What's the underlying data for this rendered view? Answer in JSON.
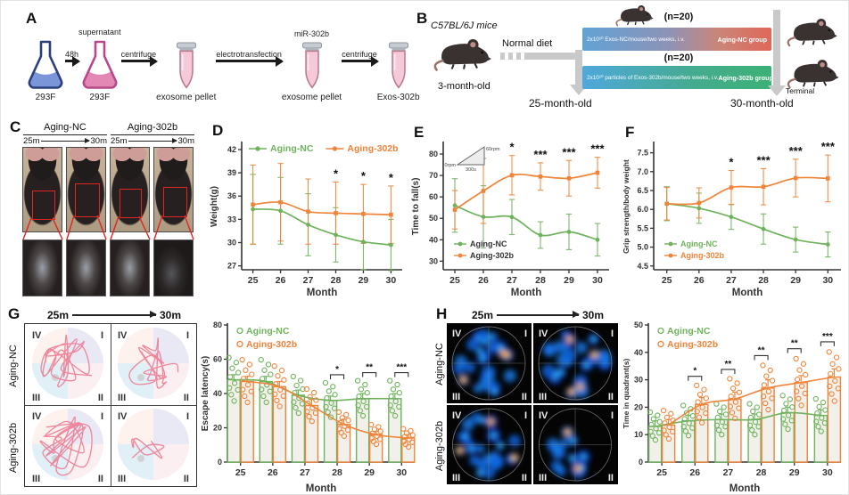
{
  "colors": {
    "aging_nc": "#6fb25c",
    "aging_302b": "#f0843a",
    "axis": "#3a3a3a",
    "highlight_red": "#e02420",
    "arrow_gray": "#c9c9c9",
    "trace_pink": "#ee8096"
  },
  "panelA": {
    "letter": "A",
    "flask1_label": "293F",
    "arrow1_label": "48h",
    "flask2_top": "supernatant",
    "flask2_label": "293F",
    "arrow2_label": "centrifuge",
    "tube1_label": "exosome pellet",
    "arrow3_label": "electrotransfection",
    "tube2_top": "miR-302b",
    "tube2_label": "exosome pellet",
    "arrow4_label": "centrifuge",
    "tube3_label": "Exos-302b"
  },
  "panelB": {
    "letter": "B",
    "strain": "C57BL/6J mice",
    "age_start": "3-month-old",
    "diet": "Normal diet",
    "n_top": "(n=20)",
    "n_bottom": "(n=20)",
    "bar_top_label": "2x10¹⁰ Exos-NC/mouse/two weeks, i.v.",
    "bar_top_group": "Aging-NC group",
    "bar_bottom_label": "2x10¹⁰ particles of Exos-302b/mouse/two weeks, i.v.",
    "bar_bottom_group": "Aging-302b group",
    "age_25": "25-month-old",
    "age_30": "30-month-old",
    "terminal": "Terminal"
  },
  "panelC": {
    "letter": "C",
    "group1": "Aging-NC",
    "group2": "Aging-302b",
    "from": "25m",
    "to": "30m"
  },
  "panelG": {
    "letter": "G",
    "from": "25m",
    "to": "30m",
    "row1": "Aging-NC",
    "row2": "Aging-302b",
    "quadrants": [
      "IV",
      "I",
      "III",
      "II"
    ]
  },
  "panelH": {
    "letter": "H",
    "from": "25m",
    "to": "30m",
    "row1": "Aging-NC",
    "row2": "Aging-302b",
    "quadrants": [
      "IV",
      "I",
      "III",
      "II"
    ]
  },
  "chart_data": [
    {
      "panel": "D",
      "type": "line",
      "x": [
        25,
        26,
        27,
        28,
        29,
        30
      ],
      "xlabel": "Month",
      "ylabel": "Weight(g)",
      "ylim": [
        26.5,
        42.8
      ],
      "yticks": [
        27,
        30,
        33,
        36,
        39,
        42
      ],
      "ytick_labels": [
        "27",
        "30",
        "33",
        "36",
        "39",
        "42"
      ],
      "series": [
        {
          "name": "Aging-NC",
          "color": "#6fb25c",
          "marker": "circle",
          "values": [
            34.3,
            34.1,
            32.3,
            31.0,
            30.1,
            29.7
          ],
          "err": [
            4.5,
            4.3,
            4.0,
            3.5,
            3.6,
            3.3
          ]
        },
        {
          "name": "Aging-302b",
          "color": "#f0843a",
          "marker": "square",
          "values": [
            34.9,
            35.2,
            34.0,
            33.8,
            33.7,
            33.6
          ],
          "err": [
            5.1,
            5.0,
            4.2,
            4.0,
            3.8,
            3.7
          ]
        }
      ],
      "sig": [
        {
          "x": 28,
          "text": "*"
        },
        {
          "x": 29,
          "text": "*"
        },
        {
          "x": 30,
          "text": "*"
        }
      ],
      "legend": {
        "pos": "top",
        "text_color": "series"
      }
    },
    {
      "panel": "E",
      "type": "line",
      "x": [
        25,
        26,
        27,
        28,
        29,
        30
      ],
      "xlabel": "Month",
      "ylabel": "Time to fall(s)",
      "ylim": [
        26,
        85
      ],
      "yticks": [
        30,
        40,
        50,
        60,
        70,
        80
      ],
      "ytick_labels": [
        "30",
        "40",
        "50",
        "60",
        "70",
        "80"
      ],
      "series": [
        {
          "name": "Aging-NC",
          "color": "#6fb25c",
          "marker": "circle",
          "values": [
            56,
            50.7,
            50.6,
            42.2,
            43.7,
            40.0
          ],
          "err": [
            12.5,
            14.5,
            8.2,
            6.2,
            8.3,
            7.6
          ]
        },
        {
          "name": "Aging-302b",
          "color": "#f0843a",
          "marker": "square",
          "values": [
            54,
            62.8,
            70.1,
            69.5,
            68.7,
            71.3
          ],
          "err": [
            9.0,
            15.2,
            9.2,
            6.4,
            8.3,
            7.2
          ]
        }
      ],
      "sig": [
        {
          "x": 27,
          "text": "*"
        },
        {
          "x": 28,
          "text": "***"
        },
        {
          "x": 29,
          "text": "***"
        },
        {
          "x": 30,
          "text": "***"
        }
      ],
      "legend": {
        "pos": "bottom-left",
        "text_color": "dark"
      },
      "inset": {
        "top": "60rpm",
        "left": "0rpm",
        "bottom": "300s"
      }
    },
    {
      "panel": "F",
      "type": "line",
      "x": [
        25,
        26,
        27,
        28,
        29,
        30
      ],
      "xlabel": "Month",
      "ylabel": "Grip strength/body weight",
      "ylim": [
        4.4,
        7.75
      ],
      "yticks": [
        4.5,
        5.0,
        5.5,
        6.0,
        6.5,
        7.0,
        7.5
      ],
      "ytick_labels": [
        "4.5",
        "5.0",
        "5.5",
        "6.0",
        "6.5",
        "7.0",
        "7.5"
      ],
      "series": [
        {
          "name": "Aging-NC",
          "color": "#6fb25c",
          "marker": "circle",
          "values": [
            6.15,
            6.03,
            5.8,
            5.48,
            5.2,
            5.07
          ],
          "err": [
            0.45,
            0.4,
            0.33,
            0.4,
            0.33,
            0.33
          ]
        },
        {
          "name": "Aging-302b",
          "color": "#f0843a",
          "marker": "square",
          "values": [
            6.15,
            6.17,
            6.58,
            6.6,
            6.83,
            6.82
          ],
          "err": [
            0.43,
            0.4,
            0.45,
            0.48,
            0.5,
            0.62
          ]
        }
      ],
      "sig": [
        {
          "x": 27,
          "text": "*"
        },
        {
          "x": 28,
          "text": "***"
        },
        {
          "x": 29,
          "text": "***"
        },
        {
          "x": 30,
          "text": "***"
        }
      ],
      "legend": {
        "pos": "bottom-left",
        "text_color": "series"
      }
    },
    {
      "panel": "G",
      "type": "bar",
      "x": [
        25,
        26,
        27,
        28,
        29,
        30
      ],
      "xlabel": "Month",
      "ylabel": "Escape latency(s)",
      "ylim": [
        0,
        80
      ],
      "yticks": [
        0,
        20,
        40,
        60,
        80
      ],
      "ytick_labels": [
        "0",
        "20",
        "40",
        "60",
        "80"
      ],
      "series": [
        {
          "name": "Aging-NC",
          "color": "#6fb25c",
          "values": [
            48,
            47,
            39,
            36,
            37,
            37
          ],
          "err": [
            3,
            3,
            3,
            2.5,
            3,
            3
          ]
        },
        {
          "name": "Aging-302b",
          "color": "#f0843a",
          "values": [
            47,
            44,
            33,
            22,
            16,
            14
          ],
          "err": [
            3,
            3,
            3.5,
            3,
            2,
            2
          ]
        }
      ],
      "sig": [
        {
          "x": 28,
          "text": "*"
        },
        {
          "x": 29,
          "text": "**"
        },
        {
          "x": 30,
          "text": "***"
        }
      ],
      "legend": {
        "pos": "top-left",
        "text_color": "series"
      }
    },
    {
      "panel": "H",
      "type": "bar",
      "x": [
        25,
        26,
        27,
        28,
        29,
        30
      ],
      "xlabel": "Month",
      "ylabel": "Time in quadrant(s)",
      "ylim": [
        0,
        50
      ],
      "yticks": [
        0,
        10,
        20,
        30,
        40,
        50
      ],
      "ytick_labels": [
        "0",
        "10",
        "20",
        "30",
        "40",
        "50"
      ],
      "series": [
        {
          "name": "Aging-NC",
          "color": "#6fb25c",
          "values": [
            13,
            15,
            15.5,
            15.5,
            18,
            17
          ],
          "err": [
            2,
            2,
            2,
            2,
            2,
            2
          ]
        },
        {
          "name": "Aging-302b",
          "color": "#f0843a",
          "values": [
            13.5,
            21,
            23,
            27,
            29,
            31
          ],
          "err": [
            2,
            2.5,
            2.5,
            3,
            2.5,
            3
          ]
        }
      ],
      "sig": [
        {
          "x": 26,
          "text": "*"
        },
        {
          "x": 27,
          "text": "**"
        },
        {
          "x": 28,
          "text": "**"
        },
        {
          "x": 29,
          "text": "**"
        },
        {
          "x": 30,
          "text": "***"
        }
      ],
      "legend": {
        "pos": "top-left",
        "text_color": "series"
      }
    }
  ]
}
